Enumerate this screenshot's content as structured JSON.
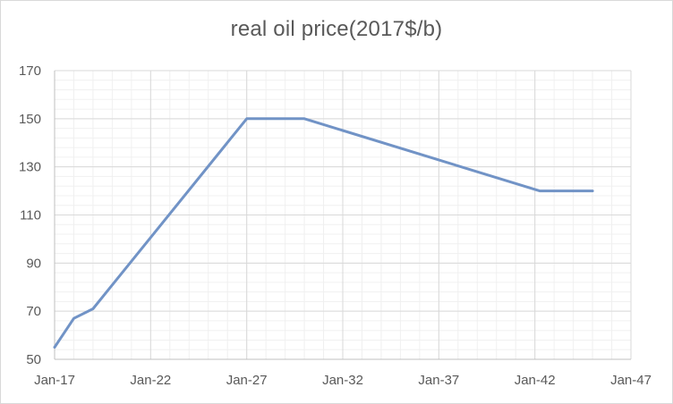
{
  "chart_data": {
    "type": "line",
    "title": "real oil price(2017$/b)",
    "xlabel": "",
    "ylabel": "",
    "x_ticks": [
      "Jan-17",
      "Jan-22",
      "Jan-27",
      "Jan-32",
      "Jan-37",
      "Jan-42",
      "Jan-47"
    ],
    "y_ticks": [
      50,
      70,
      90,
      110,
      130,
      150,
      170
    ],
    "xlim": [
      "2017-01",
      "2047-01"
    ],
    "ylim": [
      50,
      170
    ],
    "grid": {
      "major": true,
      "minor": true
    },
    "legend": "none",
    "series": [
      {
        "color": "#7193c6",
        "points": [
          {
            "x": "2017-01",
            "y": 55
          },
          {
            "x": "2018-01",
            "y": 67
          },
          {
            "x": "2019-01",
            "y": 71
          },
          {
            "x": "2027-01",
            "y": 150
          },
          {
            "x": "2030-01",
            "y": 150
          },
          {
            "x": "2042-04",
            "y": 120
          },
          {
            "x": "2045-01",
            "y": 120
          }
        ]
      }
    ]
  }
}
